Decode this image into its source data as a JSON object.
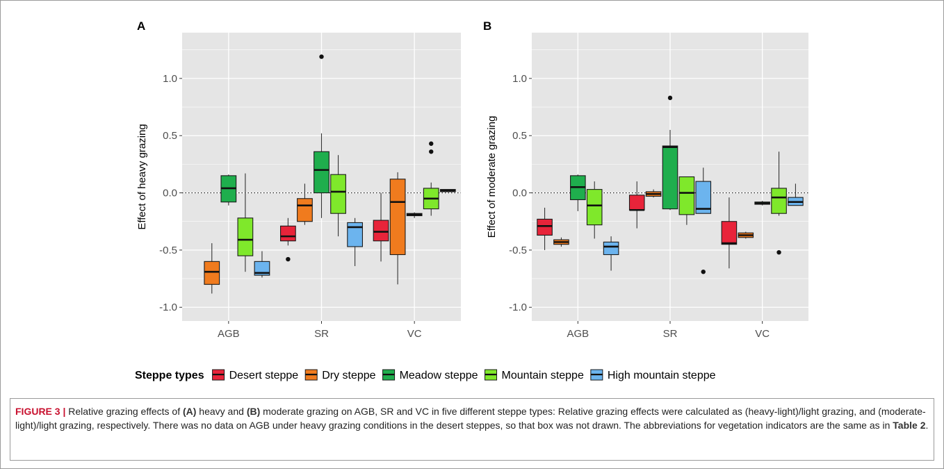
{
  "chart_data": [
    {
      "type": "box",
      "panel": "A",
      "ylabel": "Effect of heavy grazing",
      "categories": [
        "AGB",
        "SR",
        "VC"
      ],
      "ylim": [
        -1.12,
        1.4
      ],
      "yticks": [
        -1.0,
        -0.5,
        0.0,
        0.5,
        1.0
      ],
      "ytick_labels": [
        "-1.0",
        "-0.5",
        "0.0",
        "0.5",
        "1.0"
      ],
      "reference_line": 0,
      "series": [
        {
          "name": "Desert steppe",
          "boxes": [
            null,
            {
              "whislo": -0.46,
              "q1": -0.42,
              "med": -0.38,
              "q3": -0.29,
              "whishi": -0.22,
              "outliers": [
                -0.58
              ]
            },
            {
              "whislo": -0.6,
              "q1": -0.42,
              "med": -0.34,
              "q3": -0.24,
              "whishi": 0.0,
              "outliers": []
            }
          ]
        },
        {
          "name": "Dry steppe",
          "boxes": [
            {
              "whislo": -0.88,
              "q1": -0.8,
              "med": -0.69,
              "q3": -0.6,
              "whishi": -0.44,
              "outliers": []
            },
            {
              "whislo": -0.28,
              "q1": -0.25,
              "med": -0.11,
              "q3": -0.05,
              "whishi": 0.08,
              "outliers": []
            },
            {
              "whislo": -0.8,
              "q1": -0.54,
              "med": -0.08,
              "q3": 0.12,
              "whishi": 0.18,
              "outliers": []
            }
          ]
        },
        {
          "name": "Meadow steppe",
          "boxes": [
            {
              "whislo": -0.11,
              "q1": -0.08,
              "med": 0.04,
              "q3": 0.15,
              "whishi": 0.16,
              "outliers": []
            },
            {
              "whislo": -0.22,
              "q1": 0.0,
              "med": 0.2,
              "q3": 0.36,
              "whishi": 0.52,
              "outliers": [
                1.19
              ]
            },
            {
              "whislo": -0.22,
              "q1": -0.2,
              "med": -0.19,
              "q3": -0.18,
              "whishi": -0.17,
              "outliers": []
            }
          ]
        },
        {
          "name": "Mountain steppe",
          "boxes": [
            {
              "whislo": -0.69,
              "q1": -0.55,
              "med": -0.41,
              "q3": -0.22,
              "whishi": 0.17,
              "outliers": []
            },
            {
              "whislo": -0.38,
              "q1": -0.18,
              "med": 0.01,
              "q3": 0.16,
              "whishi": 0.33,
              "outliers": []
            },
            {
              "whislo": -0.2,
              "q1": -0.14,
              "med": -0.05,
              "q3": 0.04,
              "whishi": 0.09,
              "outliers": [
                0.36,
                0.43
              ]
            }
          ]
        },
        {
          "name": "High mountain steppe",
          "boxes": [
            {
              "whislo": -0.74,
              "q1": -0.72,
              "med": -0.7,
              "q3": -0.6,
              "whishi": -0.51,
              "outliers": []
            },
            {
              "whislo": -0.64,
              "q1": -0.47,
              "med": -0.3,
              "q3": -0.26,
              "whishi": -0.22,
              "outliers": []
            },
            {
              "whislo": 0.01,
              "q1": 0.01,
              "med": 0.02,
              "q3": 0.03,
              "whishi": 0.03,
              "outliers": []
            }
          ]
        }
      ]
    },
    {
      "type": "box",
      "panel": "B",
      "ylabel": "Effect of moderate grazing",
      "categories": [
        "AGB",
        "SR",
        "VC"
      ],
      "ylim": [
        -1.12,
        1.4
      ],
      "yticks": [
        -1.0,
        -0.5,
        0.0,
        0.5,
        1.0
      ],
      "ytick_labels": [
        "-1.0",
        "-0.5",
        "0.0",
        "0.5",
        "1.0"
      ],
      "reference_line": 0,
      "series": [
        {
          "name": "Desert steppe",
          "boxes": [
            {
              "whislo": -0.5,
              "q1": -0.37,
              "med": -0.29,
              "q3": -0.23,
              "whishi": -0.13,
              "outliers": []
            },
            {
              "whislo": -0.31,
              "q1": -0.15,
              "med": -0.15,
              "q3": -0.02,
              "whishi": 0.1,
              "outliers": []
            },
            {
              "whislo": -0.66,
              "q1": -0.45,
              "med": -0.44,
              "q3": -0.25,
              "whishi": -0.04,
              "outliers": []
            }
          ]
        },
        {
          "name": "Dry steppe",
          "boxes": [
            {
              "whislo": -0.47,
              "q1": -0.45,
              "med": -0.43,
              "q3": -0.41,
              "whishi": -0.39,
              "outliers": []
            },
            {
              "whislo": -0.04,
              "q1": -0.03,
              "med": -0.01,
              "q3": 0.01,
              "whishi": 0.03,
              "outliers": []
            },
            {
              "whislo": -0.4,
              "q1": -0.39,
              "med": -0.37,
              "q3": -0.35,
              "whishi": -0.34,
              "outliers": []
            }
          ]
        },
        {
          "name": "Meadow steppe",
          "boxes": [
            {
              "whislo": -0.16,
              "q1": -0.06,
              "med": 0.05,
              "q3": 0.15,
              "whishi": 0.16,
              "outliers": []
            },
            {
              "whislo": -0.15,
              "q1": -0.14,
              "med": 0.4,
              "q3": 0.41,
              "whishi": 0.55,
              "outliers": [
                0.83
              ]
            },
            {
              "whislo": -0.11,
              "q1": -0.1,
              "med": -0.09,
              "q3": -0.08,
              "whishi": -0.07,
              "outliers": []
            }
          ]
        },
        {
          "name": "Mountain steppe",
          "boxes": [
            {
              "whislo": -0.4,
              "q1": -0.28,
              "med": -0.11,
              "q3": 0.03,
              "whishi": 0.1,
              "outliers": []
            },
            {
              "whislo": -0.28,
              "q1": -0.19,
              "med": 0.0,
              "q3": 0.14,
              "whishi": 0.14,
              "outliers": []
            },
            {
              "whislo": -0.2,
              "q1": -0.18,
              "med": -0.04,
              "q3": 0.04,
              "whishi": 0.36,
              "outliers": [
                -0.52
              ]
            }
          ]
        },
        {
          "name": "High mountain steppe",
          "boxes": [
            {
              "whislo": -0.68,
              "q1": -0.54,
              "med": -0.47,
              "q3": -0.43,
              "whishi": -0.38,
              "outliers": []
            },
            {
              "whislo": -0.18,
              "q1": -0.18,
              "med": -0.14,
              "q3": 0.1,
              "whishi": 0.22,
              "outliers": [
                -0.69
              ]
            },
            {
              "whislo": -0.11,
              "q1": -0.11,
              "med": -0.08,
              "q3": -0.04,
              "whishi": 0.08,
              "outliers": []
            }
          ]
        }
      ]
    }
  ],
  "legend": {
    "title": "Steppe types",
    "placement": "bottom",
    "items": [
      {
        "label": "Desert steppe",
        "color": "#e8243a"
      },
      {
        "label": "Dry steppe",
        "color": "#f07b1e"
      },
      {
        "label": "Meadow steppe",
        "color": "#1fae4d"
      },
      {
        "label": "Mountain steppe",
        "color": "#7fe82b"
      },
      {
        "label": "High mountain steppe",
        "color": "#6cb4ee"
      }
    ]
  },
  "caption": {
    "label": "FIGURE 3 |",
    "text_1": " Relative grazing effects of ",
    "strong_a": "(A)",
    "text_2": " heavy and ",
    "strong_b": "(B)",
    "text_3": " moderate grazing on AGB, SR and VC in five different steppe types: Relative grazing effects were calculated as (heavy-light)/light grazing, and (moderate-light)/light grazing, respectively. There was no data on AGB under heavy grazing conditions in the desert steppes, so that box was not drawn. The abbreviations for vegetation indicators are the same as in ",
    "table_ref": "Table 2",
    "text_4": "."
  },
  "colors": {
    "panel_bg": "#e5e5e5",
    "grid": "#ffffff",
    "box_edge": "#1a1a1a",
    "caption_label": "#c8102e"
  }
}
